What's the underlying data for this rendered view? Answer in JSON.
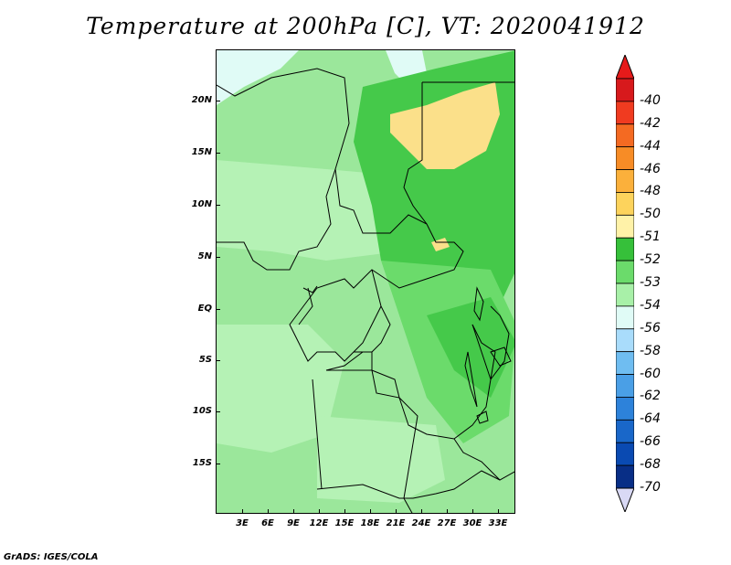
{
  "title": "Temperature at 200hPa [C], VT: 2020041912",
  "footer": "GrADS: IGES/COLA",
  "y_axis": [
    "20N",
    "15N",
    "10N",
    "5N",
    "EQ",
    "5S",
    "10S",
    "15S"
  ],
  "x_axis": [
    "3E",
    "6E",
    "9E",
    "12E",
    "15E",
    "18E",
    "21E",
    "24E",
    "27E",
    "30E",
    "33E"
  ],
  "colorbar": {
    "labels": [
      "-40",
      "-42",
      "-44",
      "-46",
      "-48",
      "-50",
      "-51",
      "-52",
      "-53",
      "-54",
      "-56",
      "-58",
      "-60",
      "-62",
      "-64",
      "-66",
      "-68",
      "-70"
    ],
    "colors": [
      "#d7191c",
      "#f03b20",
      "#f46a22",
      "#f78c26",
      "#fbb03b",
      "#fdd35c",
      "#fff2a8",
      "#36c03a",
      "#6bdb6b",
      "#a8f0a8",
      "#e0fbf6",
      "#a9dcfb",
      "#6fbdf1",
      "#4a9fe6",
      "#2d82da",
      "#1967c9",
      "#0a4ab2",
      "#082e86"
    ],
    "top_color": "#e61a1a",
    "bottom_color": "#d9d9f5"
  },
  "legend_colors": {
    "land_base": "#9be79b",
    "light": "#b5f2b5",
    "medium": "#6bdb6b",
    "dark": "#45c94a",
    "pale_cyan": "#e0fbf6",
    "yellow": "#fbe08a"
  }
}
